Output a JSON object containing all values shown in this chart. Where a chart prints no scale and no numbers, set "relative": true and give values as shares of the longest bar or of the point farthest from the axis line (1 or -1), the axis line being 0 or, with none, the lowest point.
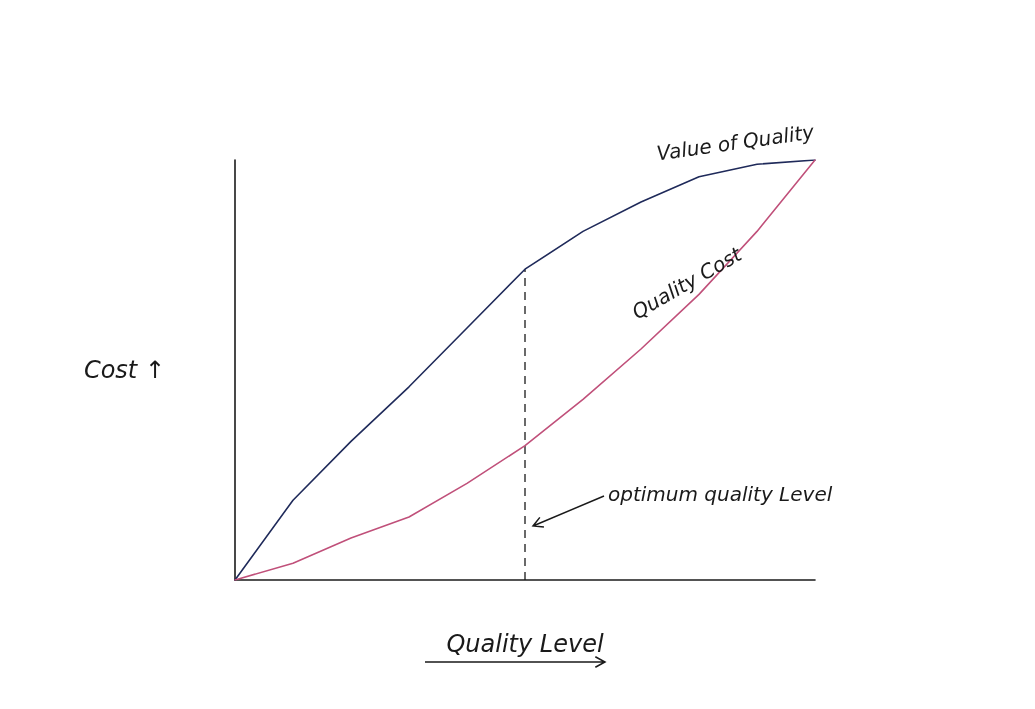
{
  "chart_data": {
    "type": "line",
    "relative": true,
    "xlabel": "Quality Level",
    "ylabel": "Cost ↑",
    "categories": [
      null,
      null,
      null,
      null,
      null,
      null,
      null,
      null,
      null,
      null,
      null
    ],
    "grid": false,
    "legend": false,
    "marker": "none",
    "line_style": "solid",
    "series": [
      {
        "name": "Value of Quality",
        "color": "#1f2a5a",
        "values": [
          0,
          0.19,
          0.33,
          0.46,
          0.6,
          0.74,
          0.83,
          0.9,
          0.96,
          0.99,
          1
        ]
      },
      {
        "name": "Quality Cost",
        "color": "#c0507a",
        "values": [
          0,
          0.04,
          0.1,
          0.15,
          0.23,
          0.32,
          0.43,
          0.55,
          0.68,
          0.83,
          1
        ]
      }
    ],
    "ref_lines": [
      {
        "axis": "x",
        "label": "optimum quality Level",
        "color": "#1a1a1a",
        "line_style": "dashed"
      }
    ]
  }
}
